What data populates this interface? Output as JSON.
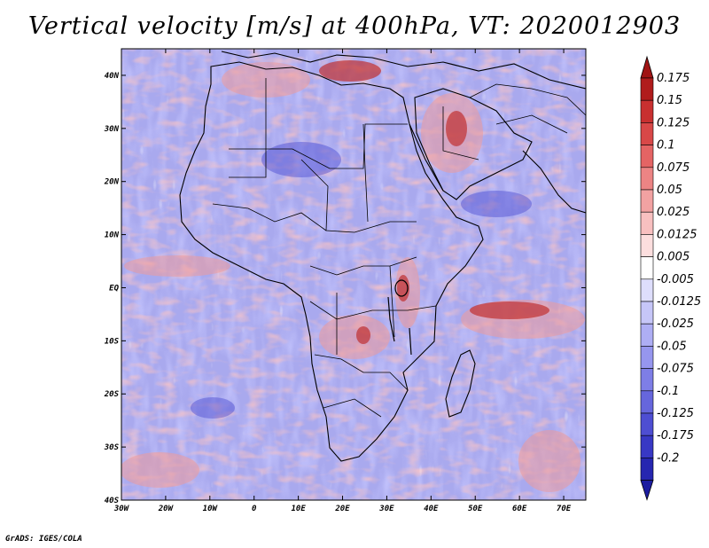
{
  "title": "Vertical velocity [m/s] at 400hPa, VT: 2020012903",
  "credit": "GrADS: IGES/COLA",
  "map": {
    "x_range": [
      -30,
      75
    ],
    "y_range": [
      -40,
      45
    ],
    "x_ticks": [
      {
        "value": -30,
        "label": "30W"
      },
      {
        "value": -20,
        "label": "20W"
      },
      {
        "value": -10,
        "label": "10W"
      },
      {
        "value": 0,
        "label": "0"
      },
      {
        "value": 10,
        "label": "10E"
      },
      {
        "value": 20,
        "label": "20E"
      },
      {
        "value": 30,
        "label": "30E"
      },
      {
        "value": 40,
        "label": "40E"
      },
      {
        "value": 50,
        "label": "50E"
      },
      {
        "value": 60,
        "label": "60E"
      },
      {
        "value": 70,
        "label": "70E"
      }
    ],
    "y_ticks": [
      {
        "value": 40,
        "label": "40N"
      },
      {
        "value": 30,
        "label": "30N"
      },
      {
        "value": 20,
        "label": "20N"
      },
      {
        "value": 10,
        "label": "10N"
      },
      {
        "value": 0,
        "label": "EQ"
      },
      {
        "value": -10,
        "label": "10S"
      },
      {
        "value": -20,
        "label": "20S"
      },
      {
        "value": -30,
        "label": "30S"
      },
      {
        "value": -40,
        "label": "40S"
      }
    ]
  },
  "colorbar": {
    "levels": [
      {
        "label": "0.175",
        "color": "#b01c1c"
      },
      {
        "label": "0.15",
        "color": "#c83030"
      },
      {
        "label": "0.125",
        "color": "#d84848"
      },
      {
        "label": "0.1",
        "color": "#e46464"
      },
      {
        "label": "0.075",
        "color": "#ec8484"
      },
      {
        "label": "0.05",
        "color": "#f2a2a2"
      },
      {
        "label": "0.025",
        "color": "#f8c0c0"
      },
      {
        "label": "0.0125",
        "color": "#fcdede"
      },
      {
        "label": "0.005",
        "color": "#ffffff"
      },
      {
        "label": "-0.005",
        "color": "#dedefc"
      },
      {
        "label": "-0.0125",
        "color": "#c6c6f8"
      },
      {
        "label": "-0.025",
        "color": "#aeaef4"
      },
      {
        "label": "-0.05",
        "color": "#9696ee"
      },
      {
        "label": "-0.075",
        "color": "#7e7ee6"
      },
      {
        "label": "-0.1",
        "color": "#6666dc"
      },
      {
        "label": "-0.125",
        "color": "#4e4ed2"
      },
      {
        "label": "-0.175",
        "color": "#3838c4"
      },
      {
        "label": "-0.2",
        "color": "#2626b0"
      }
    ],
    "top_arrow_color": "#a01414",
    "bottom_arrow_color": "#1c1ca0"
  }
}
